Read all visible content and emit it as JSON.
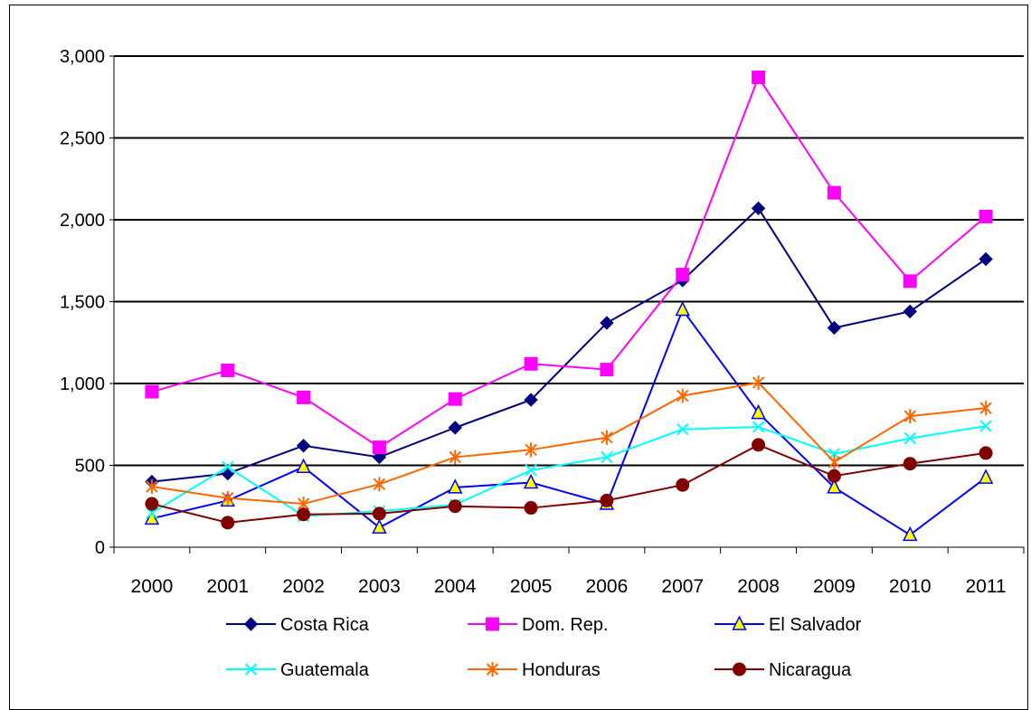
{
  "chart_data": {
    "type": "line",
    "title": "",
    "xlabel": "",
    "ylabel": "",
    "ylim": [
      0,
      3000
    ],
    "yticks": [
      0,
      500,
      1000,
      1500,
      2000,
      2500,
      3000
    ],
    "ytick_labels": [
      "0",
      "500",
      "1,000",
      "1,500",
      "2,000",
      "2,500",
      "3,000"
    ],
    "categories": [
      "2000",
      "2001",
      "2002",
      "2003",
      "2004",
      "2005",
      "2006",
      "2007",
      "2008",
      "2009",
      "2010",
      "2011"
    ],
    "grid": "horizontal",
    "legend_position": "bottom",
    "series": [
      {
        "name": "Costa Rica",
        "color": "#000080",
        "marker": "diamond",
        "values": [
          400,
          450,
          620,
          550,
          730,
          900,
          1370,
          1630,
          2070,
          1340,
          1440,
          1760
        ]
      },
      {
        "name": "Dom. Rep.",
        "color": "#FF00FF",
        "marker": "square",
        "values": [
          950,
          1080,
          915,
          610,
          905,
          1120,
          1085,
          1665,
          2870,
          2165,
          1625,
          2020
        ]
      },
      {
        "name": "El Salvador",
        "color": "#0000FF",
        "marker": "triangle",
        "values": [
          175,
          285,
          490,
          120,
          365,
          395,
          265,
          1450,
          820,
          365,
          75,
          425
        ]
      },
      {
        "name": "Guatemala",
        "color": "#00FFFF",
        "marker": "x",
        "values": [
          210,
          490,
          190,
          220,
          260,
          470,
          550,
          720,
          735,
          570,
          665,
          740
        ]
      },
      {
        "name": "Honduras",
        "color": "#FF6600",
        "marker": "star",
        "values": [
          370,
          300,
          265,
          385,
          550,
          595,
          670,
          925,
          1005,
          520,
          800,
          850
        ]
      },
      {
        "name": "Nicaragua",
        "color": "#800000",
        "marker": "circle",
        "values": [
          265,
          150,
          200,
          205,
          250,
          240,
          285,
          380,
          625,
          435,
          510,
          575
        ]
      }
    ]
  }
}
